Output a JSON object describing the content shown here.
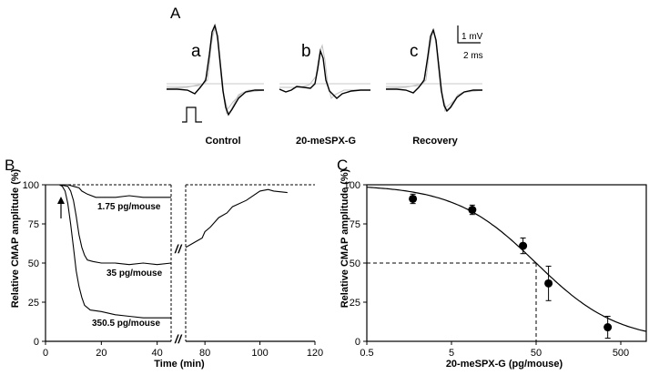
{
  "panels": {
    "A": {
      "letter": "A",
      "scale_bar": {
        "vertical_label": "1 mV",
        "horizontal_label": "2 ms"
      },
      "traces": [
        {
          "letter": "a",
          "caption": "Control"
        },
        {
          "letter": "b",
          "caption": "20-meSPX-G"
        },
        {
          "letter": "c",
          "caption": "Recovery"
        }
      ]
    },
    "B": {
      "letter": "B"
    },
    "C": {
      "letter": "C"
    }
  },
  "chart_data": [
    {
      "panel": "B",
      "type": "line",
      "xlabel": "Time (min)",
      "ylabel": "Relative CMAP amplitude (%)",
      "xlim": [
        0,
        120
      ],
      "ylim": [
        0,
        100
      ],
      "x_ticks": [
        0,
        20,
        40,
        80,
        100,
        120
      ],
      "y_ticks": [
        0,
        25,
        50,
        75,
        100
      ],
      "axis_break_x": [
        45,
        73
      ],
      "axis_break_marks": [
        "//",
        "//"
      ],
      "arrow_at_x": 6,
      "grid": false,
      "series": [
        {
          "name": "1.75 pg/mouse",
          "x": [
            0,
            5,
            8,
            10,
            12,
            13,
            15,
            18,
            20,
            25,
            30,
            35,
            40,
            45
          ],
          "y": [
            100,
            100,
            100,
            99,
            98,
            96,
            94,
            92,
            92,
            92,
            93,
            92,
            92,
            92
          ]
        },
        {
          "name": "35 pg/mouse",
          "x": [
            0,
            5,
            8,
            9,
            10,
            11,
            12,
            13,
            14,
            15,
            17,
            20,
            25,
            30,
            35,
            40,
            45
          ],
          "y": [
            100,
            100,
            99,
            96,
            90,
            80,
            68,
            60,
            55,
            52,
            51,
            50,
            50,
            49,
            50,
            49,
            50
          ]
        },
        {
          "name": "350.5 pg/mouse",
          "x": [
            0,
            5,
            6,
            7,
            8,
            9,
            10,
            11,
            12,
            13,
            14,
            16,
            20,
            25,
            30,
            35,
            40,
            45
          ],
          "y": [
            100,
            100,
            99,
            96,
            88,
            75,
            60,
            45,
            35,
            28,
            23,
            20,
            19,
            17,
            16,
            15,
            15,
            15
          ]
        },
        {
          "name": "",
          "x": [
            73,
            75,
            77,
            79,
            80,
            82,
            85,
            88,
            90,
            95,
            100,
            103,
            105,
            110
          ],
          "y": [
            60,
            62,
            64,
            66,
            70,
            73,
            79,
            82,
            86,
            90,
            96,
            97,
            96,
            95
          ]
        }
      ],
      "annotations": [
        "1.75 pg/mouse",
        "35 pg/mouse",
        "350.5 pg/mouse",
        "//",
        "//"
      ]
    },
    {
      "panel": "C",
      "type": "scatter",
      "xlabel": "20-meSPX-G (pg/mouse)",
      "ylabel": "Relative CMAP amplitude (%)",
      "x_scale": "log",
      "xlim": [
        0.5,
        1000
      ],
      "ylim": [
        0,
        100
      ],
      "x_ticks": [
        0.5,
        5,
        50,
        500
      ],
      "y_ticks": [
        0,
        25,
        50,
        75,
        100
      ],
      "grid": false,
      "points": [
        {
          "x": 1.75,
          "y": 91,
          "err": 3
        },
        {
          "x": 8.8,
          "y": 84,
          "err": 3
        },
        {
          "x": 35,
          "y": 61,
          "err": 5
        },
        {
          "x": 70,
          "y": 37,
          "err": 11
        },
        {
          "x": 350.5,
          "y": 9,
          "err": 7
        }
      ],
      "fit_curve": {
        "type": "sigmoid",
        "ic50": 50
      },
      "reference_lines": {
        "y": 50,
        "x": 50
      }
    }
  ]
}
